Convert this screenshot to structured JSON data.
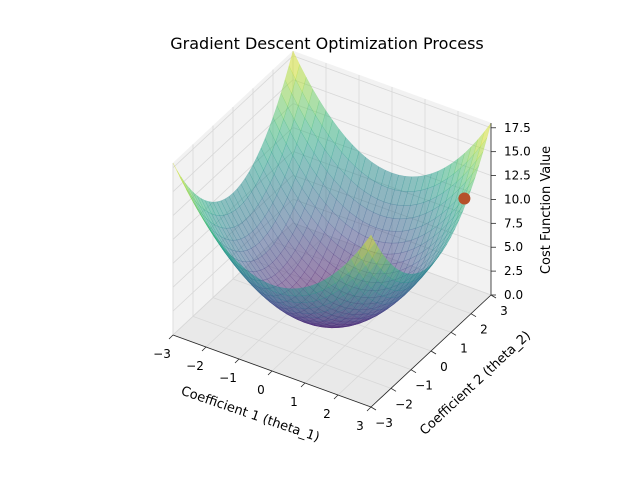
{
  "chart_data": {
    "type": "surface3d",
    "title": "Gradient Descent Optimization Process",
    "xlabel": "Coefficient 1 (theta_1)",
    "ylabel": "Coefficient 2 (theta_2)",
    "zlabel": "Cost Function Value",
    "xlim": [
      -3,
      3
    ],
    "ylim": [
      -3,
      3
    ],
    "zlim": [
      0,
      18
    ],
    "x_ticks": [
      -3,
      -2,
      -1,
      0,
      1,
      2,
      3
    ],
    "y_ticks": [
      -3,
      -2,
      -1,
      0,
      1,
      2,
      3
    ],
    "z_ticks": [
      0.0,
      2.5,
      5.0,
      7.5,
      10.0,
      12.5,
      15.0,
      17.5
    ],
    "z_tick_labels": [
      "0.0",
      "2.5",
      "5.0",
      "7.5",
      "10.0",
      "12.5",
      "15.0",
      "17.5"
    ],
    "surface": {
      "function": "x^2 + y^2",
      "colormap": "viridis",
      "alpha": 0.5
    },
    "points": [
      {
        "x": 2.8,
        "y": 2.0,
        "z": 11.8,
        "color": "#b5512a"
      }
    ],
    "grid": true
  }
}
